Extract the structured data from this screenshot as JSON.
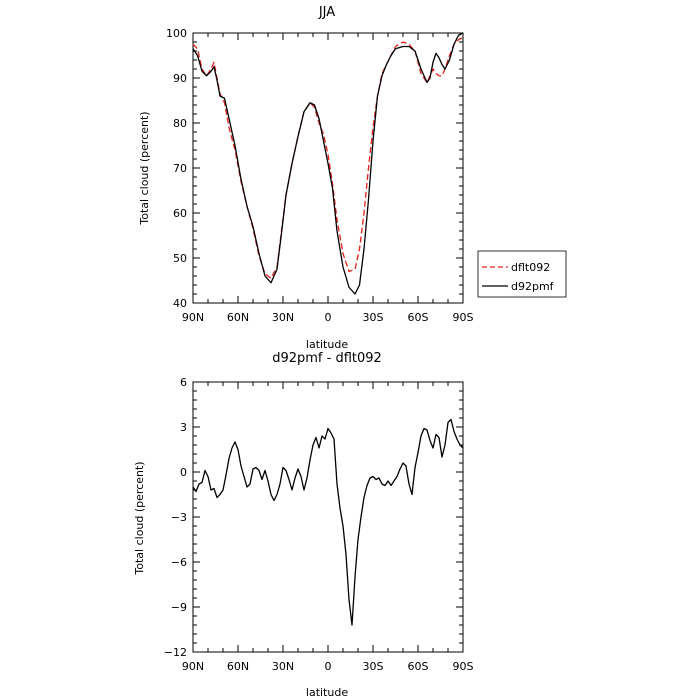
{
  "chart_data": [
    {
      "type": "line",
      "title": "JJA",
      "xlabel": "latitude",
      "ylabel": "Total cloud (percent)",
      "xlim": [
        -90,
        90
      ],
      "ylim": [
        40,
        100
      ],
      "xticks": [
        -90,
        -60,
        -30,
        0,
        30,
        60,
        90
      ],
      "xtick_labels": [
        "90N",
        "60N",
        "30N",
        "0",
        "30S",
        "60S",
        "90S"
      ],
      "yticks": [
        40,
        50,
        60,
        70,
        80,
        90,
        100
      ],
      "ytick_labels": [
        "40",
        "50",
        "60",
        "70",
        "80",
        "90",
        "100"
      ],
      "legend": {
        "placement": "right",
        "entries": [
          "dflt092",
          "d92pmf"
        ]
      },
      "series": [
        {
          "name": "dflt092",
          "color": "#e8201c",
          "dash": "dashed",
          "x": [
            -90,
            -87,
            -84,
            -81,
            -78,
            -76,
            -74,
            -72,
            -69,
            -66,
            -62,
            -58,
            -54,
            -50,
            -46,
            -42,
            -38,
            -34,
            -31,
            -28,
            -24,
            -20,
            -16,
            -12,
            -9,
            -6,
            -3,
            0,
            3,
            6,
            10,
            14,
            18,
            21,
            24,
            27,
            30,
            33,
            36,
            39,
            42,
            45,
            50,
            54,
            58,
            62,
            66,
            68,
            70,
            72,
            74,
            76,
            78,
            81,
            84,
            87,
            90
          ],
          "y": [
            97.5,
            96.5,
            92,
            90.5,
            92,
            93.5,
            90,
            86.5,
            84.5,
            79,
            74,
            67,
            61.5,
            56.5,
            50.5,
            46.5,
            45.5,
            48,
            56,
            64,
            71,
            77,
            82.5,
            84.5,
            83.5,
            80,
            77.5,
            73,
            66.5,
            58.5,
            51,
            47,
            47.5,
            52,
            60,
            70,
            79,
            86,
            91,
            93,
            95,
            97,
            98,
            97.5,
            96,
            91,
            89,
            90.5,
            92,
            91,
            90.5,
            90.5,
            92,
            95,
            97.5,
            98.5,
            99
          ]
        },
        {
          "name": "d92pmf",
          "color": "#000000",
          "dash": "solid",
          "x": [
            -90,
            -87,
            -84,
            -81,
            -78,
            -76,
            -74,
            -72,
            -69,
            -66,
            -62,
            -58,
            -54,
            -50,
            -46,
            -42,
            -38,
            -34,
            -31,
            -28,
            -24,
            -20,
            -16,
            -12,
            -9,
            -6,
            -3,
            0,
            3,
            6,
            10,
            14,
            18,
            21,
            24,
            27,
            30,
            33,
            36,
            39,
            42,
            45,
            50,
            54,
            58,
            62,
            66,
            68,
            70,
            72,
            74,
            76,
            78,
            81,
            84,
            87,
            90
          ],
          "y": [
            96.5,
            95,
            91.5,
            90.5,
            91.5,
            92.5,
            89.5,
            86,
            85.5,
            81,
            75,
            67.5,
            61.5,
            57,
            51,
            46,
            44.5,
            47.5,
            55.5,
            64,
            71,
            77,
            82.5,
            84.5,
            84,
            81,
            76,
            71,
            65.5,
            56,
            48,
            43.5,
            42,
            44,
            52,
            63,
            76,
            86,
            90.5,
            93,
            95,
            96.5,
            97,
            97,
            96,
            92,
            89,
            90,
            93.5,
            95.5,
            94.5,
            93,
            92,
            94,
            97.5,
            99.5,
            100
          ]
        }
      ]
    },
    {
      "type": "line",
      "title": "d92pmf - dflt092",
      "xlabel": "latitude",
      "ylabel": "Total cloud (percent)",
      "xlim": [
        -90,
        90
      ],
      "ylim": [
        -12,
        6
      ],
      "xticks": [
        -90,
        -60,
        -30,
        0,
        30,
        60,
        90
      ],
      "xtick_labels": [
        "90N",
        "60N",
        "30N",
        "0",
        "30S",
        "60S",
        "90S"
      ],
      "yticks": [
        -12,
        -9,
        -6,
        -3,
        0,
        3,
        6
      ],
      "ytick_labels": [
        "−12",
        "−9",
        "−6",
        "−3",
        "0",
        "3",
        "6"
      ],
      "series": [
        {
          "color": "#000000",
          "dash": "solid",
          "x": [
            -90,
            -88,
            -86,
            -84,
            -82,
            -80,
            -78,
            -76,
            -74,
            -72,
            -70,
            -68,
            -66,
            -64,
            -62,
            -60,
            -58,
            -56,
            -54,
            -52,
            -50,
            -48,
            -46,
            -44,
            -42,
            -40,
            -38,
            -36,
            -34,
            -32,
            -30,
            -28,
            -26,
            -24,
            -22,
            -20,
            -18,
            -16,
            -14,
            -12,
            -10,
            -8,
            -6,
            -4,
            -2,
            0,
            2,
            4,
            6,
            8,
            10,
            12,
            14,
            16,
            18,
            20,
            22,
            24,
            26,
            28,
            30,
            32,
            34,
            36,
            38,
            40,
            42,
            44,
            46,
            48,
            50,
            52,
            54,
            56,
            58,
            60,
            62,
            64,
            66,
            68,
            70,
            72,
            74,
            76,
            78,
            80,
            82,
            84,
            86,
            88,
            90
          ],
          "y": [
            -1,
            -1.3,
            -0.8,
            -0.7,
            0.1,
            -0.3,
            -1.2,
            -1.1,
            -1.7,
            -1.5,
            -1.2,
            -0.2,
            0.9,
            1.6,
            2,
            1.5,
            0.4,
            -0.3,
            -1,
            -0.8,
            0.2,
            0.3,
            0.1,
            -0.5,
            0.1,
            -0.6,
            -1.5,
            -1.9,
            -1.5,
            -0.8,
            0.3,
            0.1,
            -0.5,
            -1.2,
            -0.4,
            0.2,
            -0.3,
            -1.2,
            -0.4,
            0.8,
            1.8,
            2.3,
            1.6,
            2.4,
            2.2,
            2.9,
            2.6,
            2.2,
            -0.8,
            -2.4,
            -3.6,
            -5.5,
            -8.5,
            -10.2,
            -7,
            -4.5,
            -3,
            -1.7,
            -0.9,
            -0.4,
            -0.3,
            -0.5,
            -0.4,
            -0.8,
            -0.9,
            -0.6,
            -0.9,
            -0.6,
            -0.3,
            0.2,
            0.6,
            0.4,
            -0.8,
            -1.5,
            0.3,
            1.3,
            2.4,
            2.9,
            2.8,
            2.1,
            1.6,
            2.5,
            2.3,
            1,
            1.8,
            3.3,
            3.5,
            2.7,
            2.2,
            1.8,
            1.6
          ]
        }
      ]
    }
  ]
}
